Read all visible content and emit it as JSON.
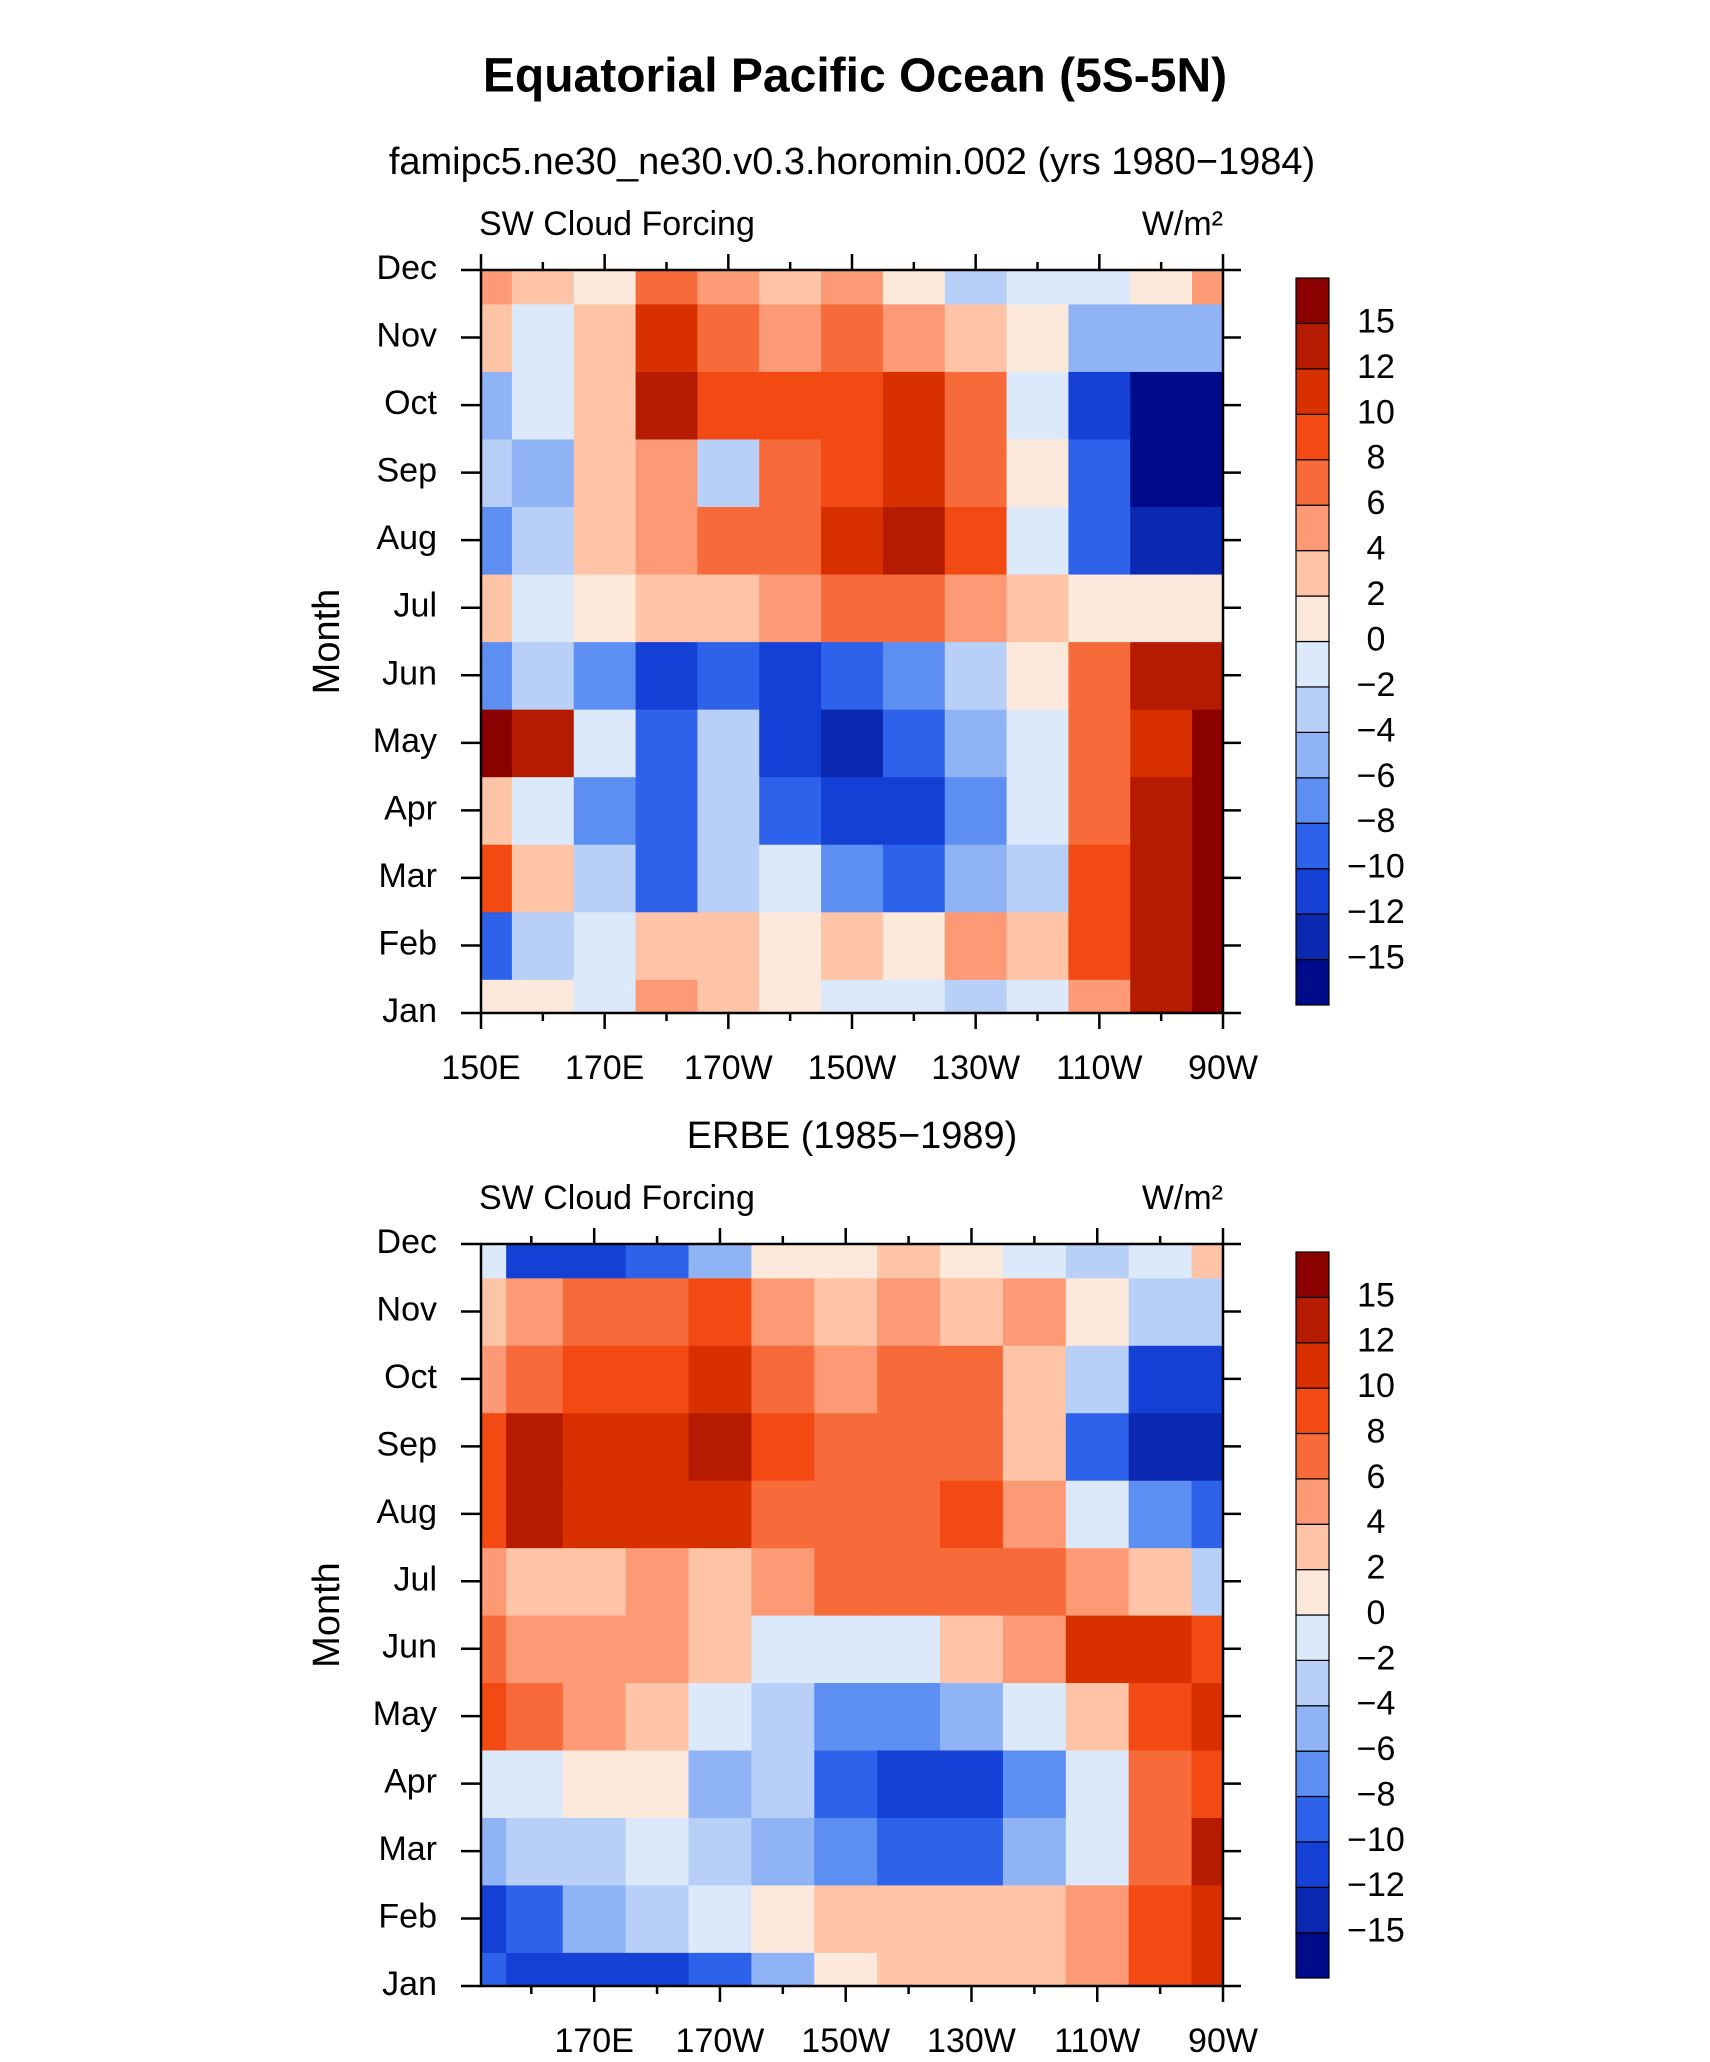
{
  "title": "Equatorial Pacific Ocean (5S-5N)",
  "chart_data": [
    {
      "type": "contour",
      "subtitle": "famipc5.ne30_ne30.v0.3.horomin.002 (yrs 1980−1984)",
      "left_label": "SW Cloud Forcing",
      "right_label": "W/m²",
      "ylabel": "Month",
      "categories": [
        "Jan",
        "Feb",
        "Mar",
        "Apr",
        "May",
        "Jun",
        "Jul",
        "Aug",
        "Sep",
        "Oct",
        "Nov",
        "Dec"
      ],
      "x": [
        150,
        160,
        170,
        180,
        190,
        200,
        210,
        220,
        230,
        240,
        250,
        260,
        270
      ],
      "xlim": [
        150,
        270
      ],
      "xticks": [
        {
          "value": 150,
          "label": "150E"
        },
        {
          "value": 170,
          "label": "170E"
        },
        {
          "value": 190,
          "label": "170W"
        },
        {
          "value": 210,
          "label": "150W"
        },
        {
          "value": 230,
          "label": "130W"
        },
        {
          "value": 250,
          "label": "110W"
        },
        {
          "value": 270,
          "label": "90W"
        }
      ],
      "xminorticks": [
        160,
        180,
        200,
        220,
        240,
        260
      ],
      "z": [
        [
          0,
          0,
          -2,
          4,
          2,
          0,
          -2,
          -2,
          -4,
          -2,
          4,
          12,
          15
        ],
        [
          -10,
          -4,
          -2,
          2,
          2,
          0,
          2,
          0,
          4,
          2,
          8,
          12,
          16
        ],
        [
          8,
          2,
          -4,
          -10,
          -4,
          -2,
          -8,
          -10,
          -6,
          -4,
          8,
          12,
          16
        ],
        [
          2,
          -2,
          -8,
          -10,
          -4,
          -10,
          -12,
          -12,
          -8,
          -2,
          6,
          12,
          16
        ],
        [
          16,
          12,
          -2,
          -10,
          -4,
          -12,
          -15,
          -10,
          -6,
          -2,
          6,
          10,
          16
        ],
        [
          -8,
          -4,
          -8,
          -12,
          -10,
          -12,
          -10,
          -8,
          -4,
          0,
          6,
          12,
          12
        ],
        [
          2,
          -2,
          0,
          2,
          2,
          4,
          6,
          6,
          4,
          2,
          0,
          0,
          0
        ],
        [
          -8,
          -4,
          2,
          4,
          6,
          6,
          10,
          12,
          8,
          -2,
          -10,
          -15,
          -15
        ],
        [
          -4,
          -6,
          2,
          4,
          -4,
          6,
          8,
          10,
          6,
          0,
          -10,
          -16,
          -16
        ],
        [
          -6,
          -2,
          2,
          12,
          8,
          8,
          8,
          10,
          6,
          -2,
          -12,
          -16,
          -16
        ],
        [
          2,
          -2,
          2,
          10,
          6,
          4,
          6,
          4,
          2,
          0,
          -6,
          -6,
          -6
        ],
        [
          4,
          2,
          0,
          6,
          4,
          2,
          4,
          0,
          -4,
          -2,
          -2,
          0,
          4
        ]
      ],
      "levels": [
        {
          "value": -15,
          "label": "−15"
        },
        {
          "value": -12,
          "label": "−12"
        },
        {
          "value": -10,
          "label": "−10"
        },
        {
          "value": -8,
          "label": "−8"
        },
        {
          "value": -6,
          "label": "−6"
        },
        {
          "value": -4,
          "label": "−4"
        },
        {
          "value": -2,
          "label": "−2"
        },
        0,
        2,
        4,
        6,
        8,
        10,
        12,
        15
      ],
      "colors": [
        "#000b8a",
        "#0a28b0",
        "#1440d6",
        "#2f62eb",
        "#5d8ef2",
        "#8fb3f5",
        "#b8d0f8",
        "#dbe9fb",
        "#fde9dc",
        "#fdc4a7",
        "#fb9a74",
        "#f76b3a",
        "#f24a12",
        "#d93000",
        "#b51b00",
        "#8b0000"
      ]
    },
    {
      "type": "contour",
      "subtitle": "ERBE (1985−1989)",
      "left_label": "SW Cloud Forcing",
      "right_label": "W/m²",
      "ylabel": "Month",
      "categories": [
        "Jan",
        "Feb",
        "Mar",
        "Apr",
        "May",
        "Jun",
        "Jul",
        "Aug",
        "Sep",
        "Oct",
        "Nov",
        "Dec"
      ],
      "x": [
        152,
        160,
        170,
        180,
        190,
        200,
        210,
        220,
        230,
        240,
        250,
        260,
        270
      ],
      "xlim": [
        152,
        270
      ],
      "xticks": [
        {
          "value": 170,
          "label": "170E"
        },
        {
          "value": 190,
          "label": "170W"
        },
        {
          "value": 210,
          "label": "150W"
        },
        {
          "value": 230,
          "label": "130W"
        },
        {
          "value": 250,
          "label": "110W"
        },
        {
          "value": 270,
          "label": "90W"
        }
      ],
      "xminorticks": [
        160,
        180,
        200,
        220,
        240,
        260
      ],
      "z": [
        [
          -10,
          -12,
          -12,
          -12,
          -10,
          -6,
          0,
          2,
          2,
          2,
          4,
          8,
          10
        ],
        [
          -12,
          -10,
          -6,
          -4,
          -2,
          0,
          2,
          2,
          2,
          2,
          4,
          8,
          10
        ],
        [
          -6,
          -4,
          -4,
          -2,
          -4,
          -6,
          -8,
          -10,
          -10,
          -6,
          -2,
          6,
          12
        ],
        [
          -2,
          -2,
          0,
          0,
          -6,
          -4,
          -10,
          -12,
          -12,
          -8,
          -2,
          6,
          8
        ],
        [
          8,
          6,
          4,
          2,
          -2,
          -4,
          -8,
          -8,
          -6,
          -2,
          2,
          8,
          10
        ],
        [
          6,
          4,
          4,
          4,
          2,
          -2,
          -2,
          -2,
          2,
          4,
          10,
          10,
          8
        ],
        [
          4,
          2,
          2,
          4,
          2,
          4,
          6,
          6,
          6,
          6,
          4,
          2,
          -4
        ],
        [
          8,
          12,
          10,
          10,
          10,
          6,
          6,
          6,
          8,
          4,
          -2,
          -8,
          -10
        ],
        [
          8,
          12,
          10,
          10,
          12,
          8,
          6,
          6,
          6,
          2,
          -10,
          -15,
          -15
        ],
        [
          4,
          6,
          8,
          8,
          10,
          6,
          4,
          6,
          6,
          2,
          -4,
          -12,
          -12
        ],
        [
          2,
          4,
          6,
          6,
          8,
          4,
          2,
          4,
          2,
          4,
          0,
          -4,
          -4
        ],
        [
          -2,
          -12,
          -12,
          -10,
          -6,
          0,
          0,
          2,
          0,
          -2,
          -4,
          -2,
          2
        ]
      ],
      "levels": [
        {
          "value": -15,
          "label": "−15"
        },
        {
          "value": -12,
          "label": "−12"
        },
        {
          "value": -10,
          "label": "−10"
        },
        {
          "value": -8,
          "label": "−8"
        },
        {
          "value": -6,
          "label": "−6"
        },
        {
          "value": -4,
          "label": "−4"
        },
        {
          "value": -2,
          "label": "−2"
        },
        0,
        2,
        4,
        6,
        8,
        10,
        12,
        15
      ],
      "colors": [
        "#000b8a",
        "#0a28b0",
        "#1440d6",
        "#2f62eb",
        "#5d8ef2",
        "#8fb3f5",
        "#b8d0f8",
        "#dbe9fb",
        "#fde9dc",
        "#fdc4a7",
        "#fb9a74",
        "#f76b3a",
        "#f24a12",
        "#d93000",
        "#b51b00",
        "#8b0000"
      ]
    }
  ]
}
